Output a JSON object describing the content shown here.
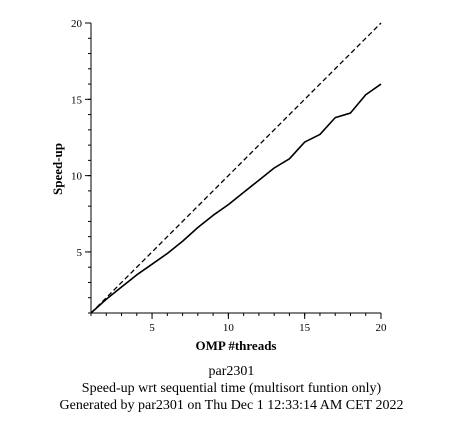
{
  "chart_data": {
    "type": "line",
    "xlabel": "OMP #threads",
    "ylabel": "Speed-up",
    "xlim": [
      1,
      20
    ],
    "ylim": [
      1,
      20
    ],
    "x_ticks": [
      5,
      10,
      15,
      20
    ],
    "y_ticks": [
      5,
      10,
      15,
      20
    ],
    "grid": false,
    "series": [
      {
        "style": "dashed",
        "x": [
          1,
          20
        ],
        "y": [
          1,
          20
        ]
      },
      {
        "style": "solid",
        "x": [
          1,
          2,
          3,
          4,
          5,
          6,
          7,
          8,
          9,
          10,
          11,
          12,
          13,
          14,
          15,
          16,
          17,
          18,
          19,
          20
        ],
        "y": [
          1.0,
          1.9,
          2.7,
          3.5,
          4.2,
          4.9,
          5.7,
          6.6,
          7.4,
          8.1,
          8.9,
          9.7,
          10.5,
          11.1,
          12.2,
          12.7,
          13.8,
          14.1,
          15.3,
          16.0
        ]
      }
    ]
  },
  "captions": {
    "line1": "par2301",
    "line2": "Speed-up wrt sequential time (multisort funtion only)",
    "line3": "Generated by par2301 on Thu Dec  1 12:33:14 AM CET 2022"
  },
  "colors": {
    "line": "#000000",
    "background": "#ffffff"
  }
}
